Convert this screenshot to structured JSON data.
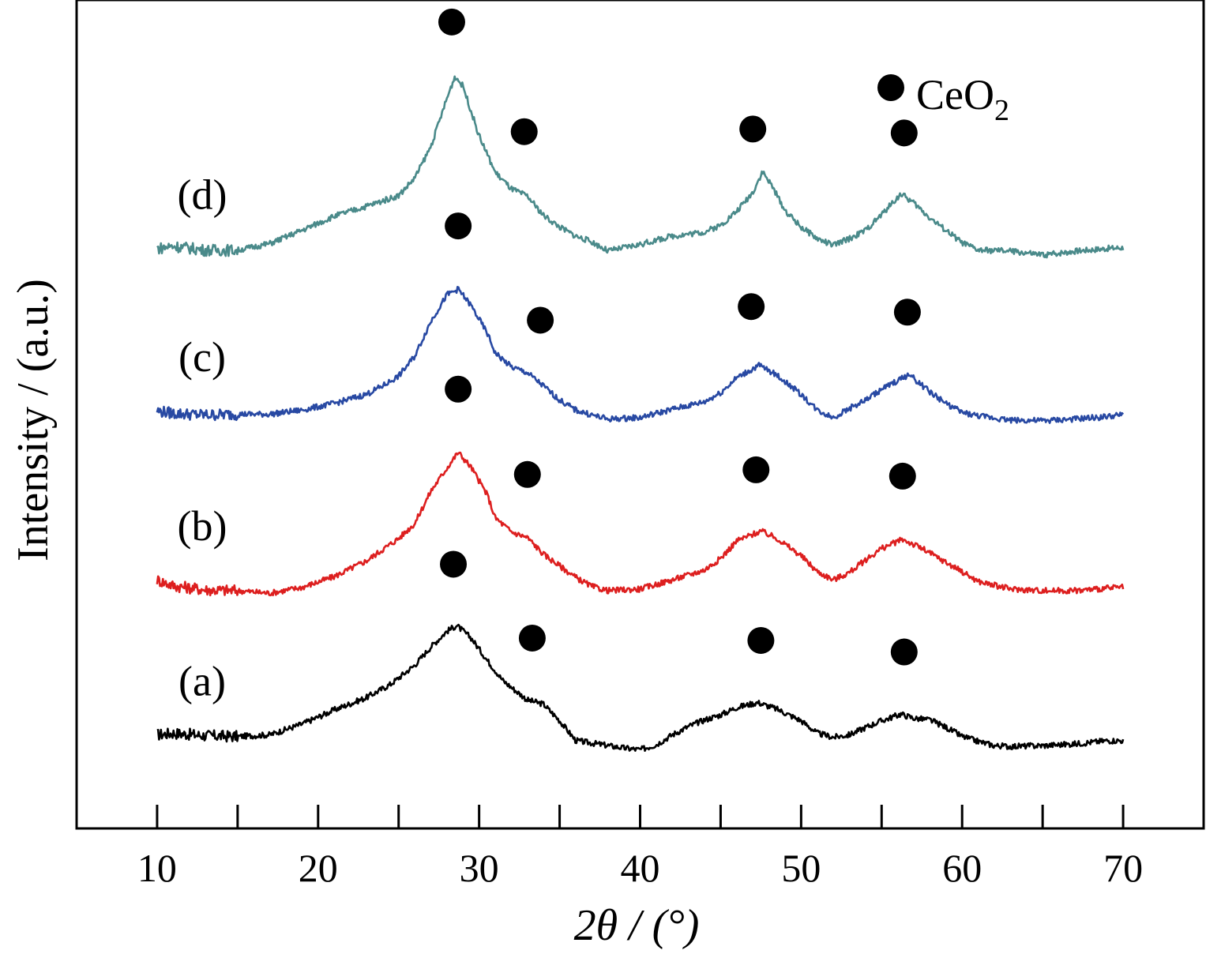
{
  "chart_data": {
    "type": "line",
    "xlabel": "2θ / (°)",
    "ylabel": "Intensity / (a.u.)",
    "xlim": [
      5,
      75
    ],
    "xticks": [
      10,
      20,
      30,
      40,
      50,
      60,
      70
    ],
    "xtick_labels": [
      "10",
      "20",
      "30",
      "40",
      "50",
      "60",
      "70"
    ],
    "ylim": [
      0,
      10
    ],
    "grid": false,
    "y_ticks_shown": false,
    "legend": {
      "placement": "top-right",
      "entries": [
        {
          "marker": "filled-circle",
          "label": "CeO",
          "subscript": "2"
        }
      ]
    },
    "series": [
      {
        "name": "(a)",
        "color": "#000000",
        "points": [
          [
            10,
            1.13
          ],
          [
            11,
            1.15
          ],
          [
            13,
            1.12
          ],
          [
            15,
            1.11
          ],
          [
            17,
            1.13
          ],
          [
            19,
            1.26
          ],
          [
            21,
            1.43
          ],
          [
            23,
            1.58
          ],
          [
            24.5,
            1.74
          ],
          [
            26,
            1.97
          ],
          [
            27,
            2.19
          ],
          [
            28,
            2.38
          ],
          [
            28.6,
            2.45
          ],
          [
            29.5,
            2.3
          ],
          [
            30.5,
            2.03
          ],
          [
            31.5,
            1.78
          ],
          [
            33,
            1.55
          ],
          [
            34,
            1.5
          ],
          [
            35,
            1.3
          ],
          [
            36,
            1.06
          ],
          [
            37,
            1.03
          ],
          [
            38,
            1.0
          ],
          [
            39,
            0.97
          ],
          [
            40,
            0.95
          ],
          [
            41,
            1.01
          ],
          [
            42,
            1.13
          ],
          [
            43,
            1.23
          ],
          [
            44,
            1.31
          ],
          [
            45,
            1.37
          ],
          [
            46,
            1.46
          ],
          [
            47.3,
            1.52
          ],
          [
            48.5,
            1.44
          ],
          [
            50,
            1.3
          ],
          [
            51,
            1.15
          ],
          [
            52,
            1.1
          ],
          [
            53,
            1.13
          ],
          [
            54,
            1.22
          ],
          [
            55,
            1.3
          ],
          [
            56.2,
            1.38
          ],
          [
            57,
            1.33
          ],
          [
            58,
            1.31
          ],
          [
            59,
            1.22
          ],
          [
            60,
            1.11
          ],
          [
            61,
            1.05
          ],
          [
            62,
            1.0
          ],
          [
            63,
            0.99
          ],
          [
            65,
            1.0
          ],
          [
            67,
            1.02
          ],
          [
            69,
            1.06
          ],
          [
            70,
            1.06
          ]
        ],
        "peak_markers": [
          28.4,
          33.3,
          47.5,
          56.4
        ]
      },
      {
        "name": "(b)",
        "color": "#dd1f1f",
        "points": [
          [
            10,
            3.0
          ],
          [
            11,
            2.93
          ],
          [
            13,
            2.88
          ],
          [
            15,
            2.87
          ],
          [
            17,
            2.84
          ],
          [
            19,
            2.91
          ],
          [
            21,
            3.04
          ],
          [
            23,
            3.23
          ],
          [
            25,
            3.5
          ],
          [
            26,
            3.68
          ],
          [
            27,
            4.07
          ],
          [
            28,
            4.35
          ],
          [
            28.7,
            4.54
          ],
          [
            29.5,
            4.36
          ],
          [
            30.5,
            4.03
          ],
          [
            31,
            3.75
          ],
          [
            32,
            3.58
          ],
          [
            33,
            3.51
          ],
          [
            34,
            3.31
          ],
          [
            35,
            3.17
          ],
          [
            36,
            3.03
          ],
          [
            37,
            2.92
          ],
          [
            38,
            2.87
          ],
          [
            40,
            2.89
          ],
          [
            42,
            3.0
          ],
          [
            44,
            3.12
          ],
          [
            45,
            3.26
          ],
          [
            46,
            3.47
          ],
          [
            47.5,
            3.59
          ],
          [
            48.5,
            3.5
          ],
          [
            50,
            3.29
          ],
          [
            51,
            3.1
          ],
          [
            52,
            3.0
          ],
          [
            53,
            3.09
          ],
          [
            54,
            3.24
          ],
          [
            55,
            3.38
          ],
          [
            56.3,
            3.49
          ],
          [
            57.5,
            3.38
          ],
          [
            59,
            3.21
          ],
          [
            60,
            3.1
          ],
          [
            61,
            2.98
          ],
          [
            63,
            2.89
          ],
          [
            65,
            2.87
          ],
          [
            67,
            2.87
          ],
          [
            69,
            2.9
          ],
          [
            70,
            2.91
          ]
        ],
        "peak_markers": [
          28.7,
          33.0,
          47.2,
          56.3
        ]
      },
      {
        "name": "(c)",
        "color": "#2849a3",
        "points": [
          [
            10,
            5.04
          ],
          [
            11,
            5.01
          ],
          [
            13,
            4.99
          ],
          [
            15,
            5.0
          ],
          [
            17,
            5.0
          ],
          [
            19,
            5.05
          ],
          [
            21,
            5.13
          ],
          [
            23,
            5.24
          ],
          [
            24,
            5.34
          ],
          [
            25,
            5.46
          ],
          [
            26,
            5.7
          ],
          [
            27,
            6.12
          ],
          [
            28,
            6.44
          ],
          [
            28.7,
            6.51
          ],
          [
            29.5,
            6.31
          ],
          [
            30.5,
            5.98
          ],
          [
            31,
            5.74
          ],
          [
            32,
            5.57
          ],
          [
            33,
            5.5
          ],
          [
            34,
            5.34
          ],
          [
            35,
            5.17
          ],
          [
            36,
            5.05
          ],
          [
            37,
            4.99
          ],
          [
            38,
            4.94
          ],
          [
            40,
            4.96
          ],
          [
            42,
            5.06
          ],
          [
            44,
            5.15
          ],
          [
            45,
            5.26
          ],
          [
            46,
            5.44
          ],
          [
            47.4,
            5.59
          ],
          [
            48.5,
            5.47
          ],
          [
            50,
            5.24
          ],
          [
            51,
            5.05
          ],
          [
            52,
            4.96
          ],
          [
            53,
            5.07
          ],
          [
            54,
            5.17
          ],
          [
            55,
            5.3
          ],
          [
            56.7,
            5.48
          ],
          [
            58,
            5.27
          ],
          [
            59,
            5.13
          ],
          [
            60,
            5.02
          ],
          [
            61,
            4.98
          ],
          [
            63,
            4.93
          ],
          [
            65,
            4.92
          ],
          [
            67,
            4.94
          ],
          [
            69,
            4.97
          ],
          [
            70,
            4.99
          ]
        ],
        "peak_markers": [
          28.7,
          33.8,
          46.9,
          56.6
        ]
      },
      {
        "name": "(d)",
        "color": "#4a8a8a",
        "points": [
          [
            10,
            7.0
          ],
          [
            11,
            7.03
          ],
          [
            13,
            6.98
          ],
          [
            15,
            6.98
          ],
          [
            17,
            7.06
          ],
          [
            19,
            7.22
          ],
          [
            21,
            7.39
          ],
          [
            23,
            7.51
          ],
          [
            25,
            7.64
          ],
          [
            26,
            7.85
          ],
          [
            27,
            8.23
          ],
          [
            28,
            8.81
          ],
          [
            28.5,
            9.08
          ],
          [
            29,
            8.96
          ],
          [
            30,
            8.36
          ],
          [
            31,
            7.92
          ],
          [
            32,
            7.72
          ],
          [
            33,
            7.63
          ],
          [
            34,
            7.4
          ],
          [
            35,
            7.26
          ],
          [
            36,
            7.15
          ],
          [
            37,
            7.08
          ],
          [
            38,
            6.97
          ],
          [
            40,
            7.05
          ],
          [
            42,
            7.15
          ],
          [
            44,
            7.2
          ],
          [
            45,
            7.28
          ],
          [
            46,
            7.45
          ],
          [
            47,
            7.68
          ],
          [
            47.6,
            7.93
          ],
          [
            48.2,
            7.75
          ],
          [
            49,
            7.46
          ],
          [
            50,
            7.26
          ],
          [
            51,
            7.12
          ],
          [
            52,
            7.04
          ],
          [
            53,
            7.12
          ],
          [
            54,
            7.22
          ],
          [
            55,
            7.41
          ],
          [
            56.2,
            7.66
          ],
          [
            57,
            7.55
          ],
          [
            58,
            7.37
          ],
          [
            59,
            7.22
          ],
          [
            60,
            7.07
          ],
          [
            61,
            6.98
          ],
          [
            63,
            6.97
          ],
          [
            65,
            6.92
          ],
          [
            67,
            6.97
          ],
          [
            69,
            7.0
          ],
          [
            70,
            7.01
          ]
        ],
        "peak_markers": [
          28.3,
          32.8,
          47.0,
          56.4
        ]
      }
    ]
  }
}
